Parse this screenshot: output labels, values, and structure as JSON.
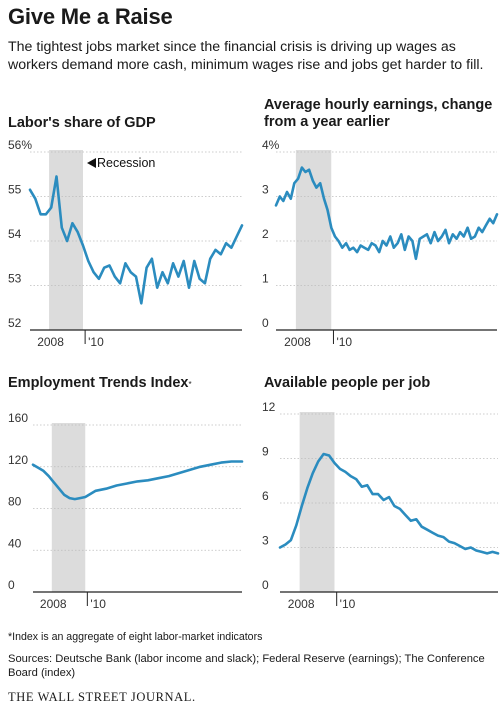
{
  "header": {
    "title": "Give Me a Raise",
    "subtitle": "The tightest jobs market since the financial crisis is driving up wages as workers demand more cash, minimum wages rise and jobs get harder to fill."
  },
  "footer": {
    "footnote": "*Index is an aggregate of eight labor-market indicators",
    "sources": "Sources: Deutsche Bank (labor income and slack); Federal Reserve (earnings); The Conference Board (index)",
    "publisher": "THE WALL STREET JOURNAL."
  },
  "colors": {
    "line": "#2b8cbf",
    "recession": "#dcdcdc",
    "axis": "#222222"
  },
  "chart_data": [
    {
      "type": "line",
      "title": "Labor's share of GDP",
      "ylim": [
        52,
        56
      ],
      "yticks": [
        "56%",
        "55",
        "54",
        "53",
        "52"
      ],
      "xticks": [
        "2008",
        "'10"
      ],
      "annotation": "Recession",
      "recession": [
        2007.9,
        2009.5
      ],
      "x": [
        2007.0,
        2007.25,
        2007.5,
        2007.75,
        2008.0,
        2008.25,
        2008.5,
        2008.75,
        2009.0,
        2009.25,
        2009.5,
        2009.75,
        2010.0,
        2010.25,
        2010.5,
        2010.75,
        2011.0,
        2011.25,
        2011.5,
        2011.75,
        2012.0,
        2012.25,
        2012.5,
        2012.75,
        2013.0,
        2013.25,
        2013.5,
        2013.75,
        2014.0,
        2014.25,
        2014.5,
        2014.75,
        2015.0,
        2015.25,
        2015.5,
        2015.75,
        2016.0,
        2016.25,
        2016.5,
        2016.75,
        2017.0
      ],
      "y": [
        55.15,
        54.95,
        54.6,
        54.6,
        54.75,
        55.45,
        54.3,
        54.0,
        54.4,
        54.2,
        53.9,
        53.55,
        53.3,
        53.15,
        53.4,
        53.45,
        53.2,
        53.05,
        53.5,
        53.3,
        53.2,
        52.6,
        53.4,
        53.6,
        52.95,
        53.3,
        53.05,
        53.5,
        53.2,
        53.55,
        52.95,
        53.55,
        53.15,
        53.05,
        53.6,
        53.8,
        53.7,
        53.95,
        53.85,
        54.1,
        54.35
      ]
    },
    {
      "type": "line",
      "title": "Average hourly earnings, change from a year earlier",
      "ylim": [
        0,
        4
      ],
      "yticks": [
        "4%",
        "3",
        "2",
        "1",
        "0"
      ],
      "xticks": [
        "2008",
        "'10"
      ],
      "recession": [
        2007.9,
        2009.5
      ],
      "x": [
        2007.0,
        2007.17,
        2007.33,
        2007.5,
        2007.67,
        2007.83,
        2008.0,
        2008.17,
        2008.33,
        2008.5,
        2008.67,
        2008.83,
        2009.0,
        2009.17,
        2009.33,
        2009.5,
        2009.67,
        2009.83,
        2010.0,
        2010.17,
        2010.33,
        2010.5,
        2010.67,
        2010.83,
        2011.0,
        2011.17,
        2011.33,
        2011.5,
        2011.67,
        2011.83,
        2012.0,
        2012.17,
        2012.33,
        2012.5,
        2012.67,
        2012.83,
        2013.0,
        2013.17,
        2013.33,
        2013.5,
        2013.67,
        2013.83,
        2014.0,
        2014.17,
        2014.33,
        2014.5,
        2014.67,
        2014.83,
        2015.0,
        2015.17,
        2015.33,
        2015.5,
        2015.67,
        2015.83,
        2016.0,
        2016.17,
        2016.33,
        2016.5,
        2016.67,
        2016.83,
        2017.0
      ],
      "y": [
        2.8,
        3.0,
        2.9,
        3.1,
        2.95,
        3.3,
        3.4,
        3.65,
        3.55,
        3.6,
        3.35,
        3.2,
        3.3,
        2.95,
        2.7,
        2.3,
        2.1,
        2.0,
        1.85,
        1.95,
        1.8,
        1.85,
        1.75,
        1.9,
        1.85,
        1.8,
        1.95,
        1.9,
        1.75,
        2.0,
        1.9,
        2.1,
        1.85,
        1.95,
        2.15,
        1.8,
        2.1,
        2.0,
        1.6,
        2.05,
        2.1,
        2.15,
        1.95,
        2.2,
        2.0,
        2.1,
        2.25,
        1.95,
        2.15,
        2.05,
        2.2,
        2.1,
        2.3,
        2.05,
        2.1,
        2.3,
        2.2,
        2.35,
        2.5,
        2.4,
        2.6
      ]
    },
    {
      "type": "line",
      "title": "Employment Trends Index",
      "title_footnote_mark": "*",
      "ylim": [
        0,
        160
      ],
      "yticks": [
        "160",
        "120",
        "80",
        "40",
        "0"
      ],
      "xticks": [
        "2008",
        "'10"
      ],
      "recession": [
        2007.9,
        2009.5
      ],
      "x": [
        2007.0,
        2007.25,
        2007.5,
        2007.75,
        2008.0,
        2008.25,
        2008.5,
        2008.75,
        2009.0,
        2009.25,
        2009.5,
        2009.75,
        2010.0,
        2010.5,
        2011.0,
        2011.5,
        2012.0,
        2012.5,
        2013.0,
        2013.5,
        2014.0,
        2014.5,
        2015.0,
        2015.5,
        2016.0,
        2016.5,
        2017.0
      ],
      "y": [
        122,
        119,
        116,
        111,
        105,
        99,
        93,
        90,
        89,
        90,
        91,
        94,
        97,
        99,
        102,
        104,
        106,
        107,
        109,
        111,
        114,
        117,
        120,
        122,
        124,
        125,
        125
      ]
    },
    {
      "type": "line",
      "title": "Available people per job",
      "ylim": [
        0,
        12
      ],
      "yticks": [
        "12",
        "9",
        "6",
        "3",
        "0"
      ],
      "xticks": [
        "2008",
        "'10"
      ],
      "recession": [
        2007.9,
        2009.5
      ],
      "x": [
        2007.0,
        2007.25,
        2007.5,
        2007.75,
        2008.0,
        2008.25,
        2008.5,
        2008.75,
        2009.0,
        2009.25,
        2009.5,
        2009.75,
        2010.0,
        2010.25,
        2010.5,
        2010.75,
        2011.0,
        2011.25,
        2011.5,
        2011.75,
        2012.0,
        2012.25,
        2012.5,
        2012.75,
        2013.0,
        2013.25,
        2013.5,
        2013.75,
        2014.0,
        2014.25,
        2014.5,
        2014.75,
        2015.0,
        2015.25,
        2015.5,
        2015.75,
        2016.0,
        2016.25,
        2016.5,
        2016.75,
        2017.0
      ],
      "y": [
        3.0,
        3.2,
        3.5,
        4.5,
        5.8,
        7.0,
        8.0,
        8.8,
        9.3,
        9.2,
        8.7,
        8.3,
        8.1,
        7.8,
        7.6,
        7.1,
        7.2,
        6.6,
        6.6,
        6.2,
        6.4,
        5.8,
        5.6,
        5.2,
        4.8,
        4.9,
        4.4,
        4.2,
        4.0,
        3.8,
        3.7,
        3.4,
        3.3,
        3.1,
        2.9,
        3.0,
        2.8,
        2.7,
        2.6,
        2.7,
        2.6
      ]
    }
  ]
}
